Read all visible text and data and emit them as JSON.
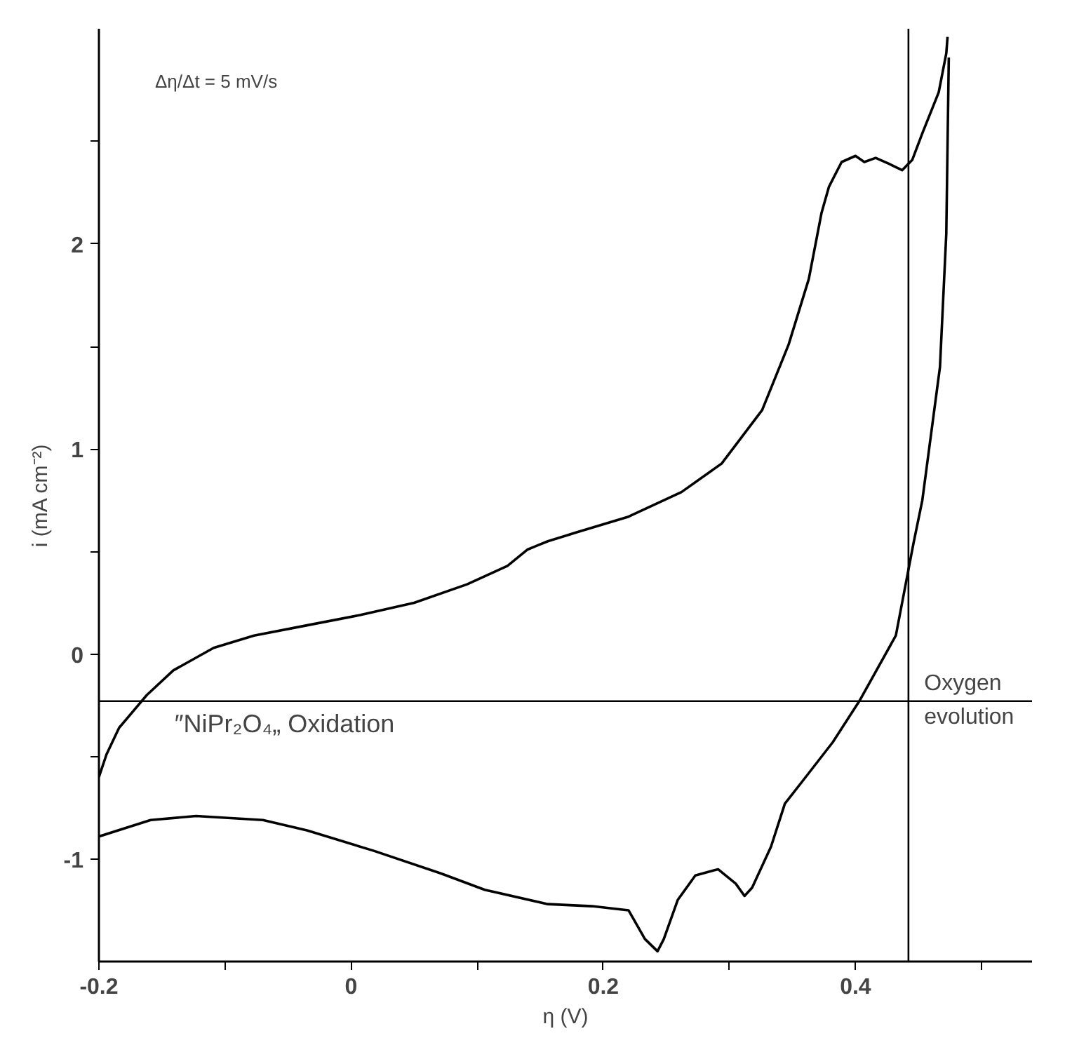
{
  "chart_data": {
    "type": "line",
    "xlabel": "η (V)",
    "ylabel": "i (mA cm⁻²)",
    "xlim": [
      -0.2,
      0.54
    ],
    "ylim": [
      -1.5,
      3.05
    ],
    "xticks": [
      -0.2,
      {
        "value": -0.1,
        "label": null
      },
      0,
      {
        "value": 0.1,
        "label": null
      },
      0.2,
      {
        "value": 0.3,
        "label": null
      },
      0.4,
      {
        "value": 0.5,
        "label": null
      }
    ],
    "yticks": [
      -1,
      {
        "value": -0.5,
        "label": null
      },
      0,
      {
        "value": 0.5,
        "label": null
      },
      1,
      {
        "value": 1.5,
        "label": null
      },
      2,
      {
        "value": 2.5,
        "label": null
      }
    ],
    "grid": false,
    "marker": "none",
    "line_style": "solid",
    "series": [
      {
        "color": "#000000",
        "x": [
          -0.2,
          -0.194,
          -0.184,
          -0.162,
          -0.141,
          -0.109,
          -0.077,
          -0.035,
          0.007,
          0.05,
          0.092,
          0.124,
          0.14,
          0.156,
          0.177,
          0.22,
          0.262,
          0.294,
          0.326,
          0.347,
          0.363,
          0.373,
          0.379,
          0.389,
          0.4,
          0.407,
          0.416,
          0.427,
          0.437,
          0.445,
          0.453,
          0.466,
          0.472,
          0.473
        ],
        "values": [
          -0.6,
          -0.49,
          -0.36,
          -0.2,
          -0.08,
          0.03,
          0.09,
          0.14,
          0.19,
          0.25,
          0.34,
          0.43,
          0.51,
          0.55,
          0.59,
          0.67,
          0.79,
          0.93,
          1.19,
          1.51,
          1.83,
          2.15,
          2.28,
          2.4,
          2.43,
          2.4,
          2.42,
          2.39,
          2.36,
          2.41,
          2.54,
          2.74,
          2.93,
          3.01
        ]
      },
      {
        "color": "#000000",
        "x": [
          0.474,
          0.472,
          0.467,
          0.453,
          0.446,
          0.432,
          0.403,
          0.382,
          0.358,
          0.344,
          0.333,
          0.318,
          0.312,
          0.305,
          0.291,
          0.273,
          0.259,
          0.248,
          0.243,
          0.233,
          0.22,
          0.191,
          0.156,
          0.106,
          0.071,
          0.018,
          -0.035,
          -0.07,
          -0.123,
          -0.159,
          -0.2
        ],
        "values": [
          2.91,
          2.05,
          1.4,
          0.75,
          0.54,
          0.09,
          -0.23,
          -0.43,
          -0.62,
          -0.73,
          -0.94,
          -1.14,
          -1.18,
          -1.12,
          -1.05,
          -1.08,
          -1.2,
          -1.39,
          -1.45,
          -1.39,
          -1.25,
          -1.23,
          -1.22,
          -1.15,
          -1.07,
          -0.96,
          -0.86,
          -0.81,
          -0.79,
          -0.81,
          -0.89
        ]
      }
    ],
    "ref_lines": [
      {
        "axis": "x",
        "value": 0.442,
        "color": "#000000"
      },
      {
        "axis": "y",
        "value": -0.23,
        "color": "#000000"
      }
    ],
    "annotations": [
      "Δη/Δt = 5 mV/s",
      {
        "text": "″NiPr₂O₄„ Oxidation",
        "x": -0.14,
        "y": -0.23
      },
      {
        "text": "Oxygen evolution",
        "x": 0.45,
        "y": -0.23
      }
    ]
  }
}
